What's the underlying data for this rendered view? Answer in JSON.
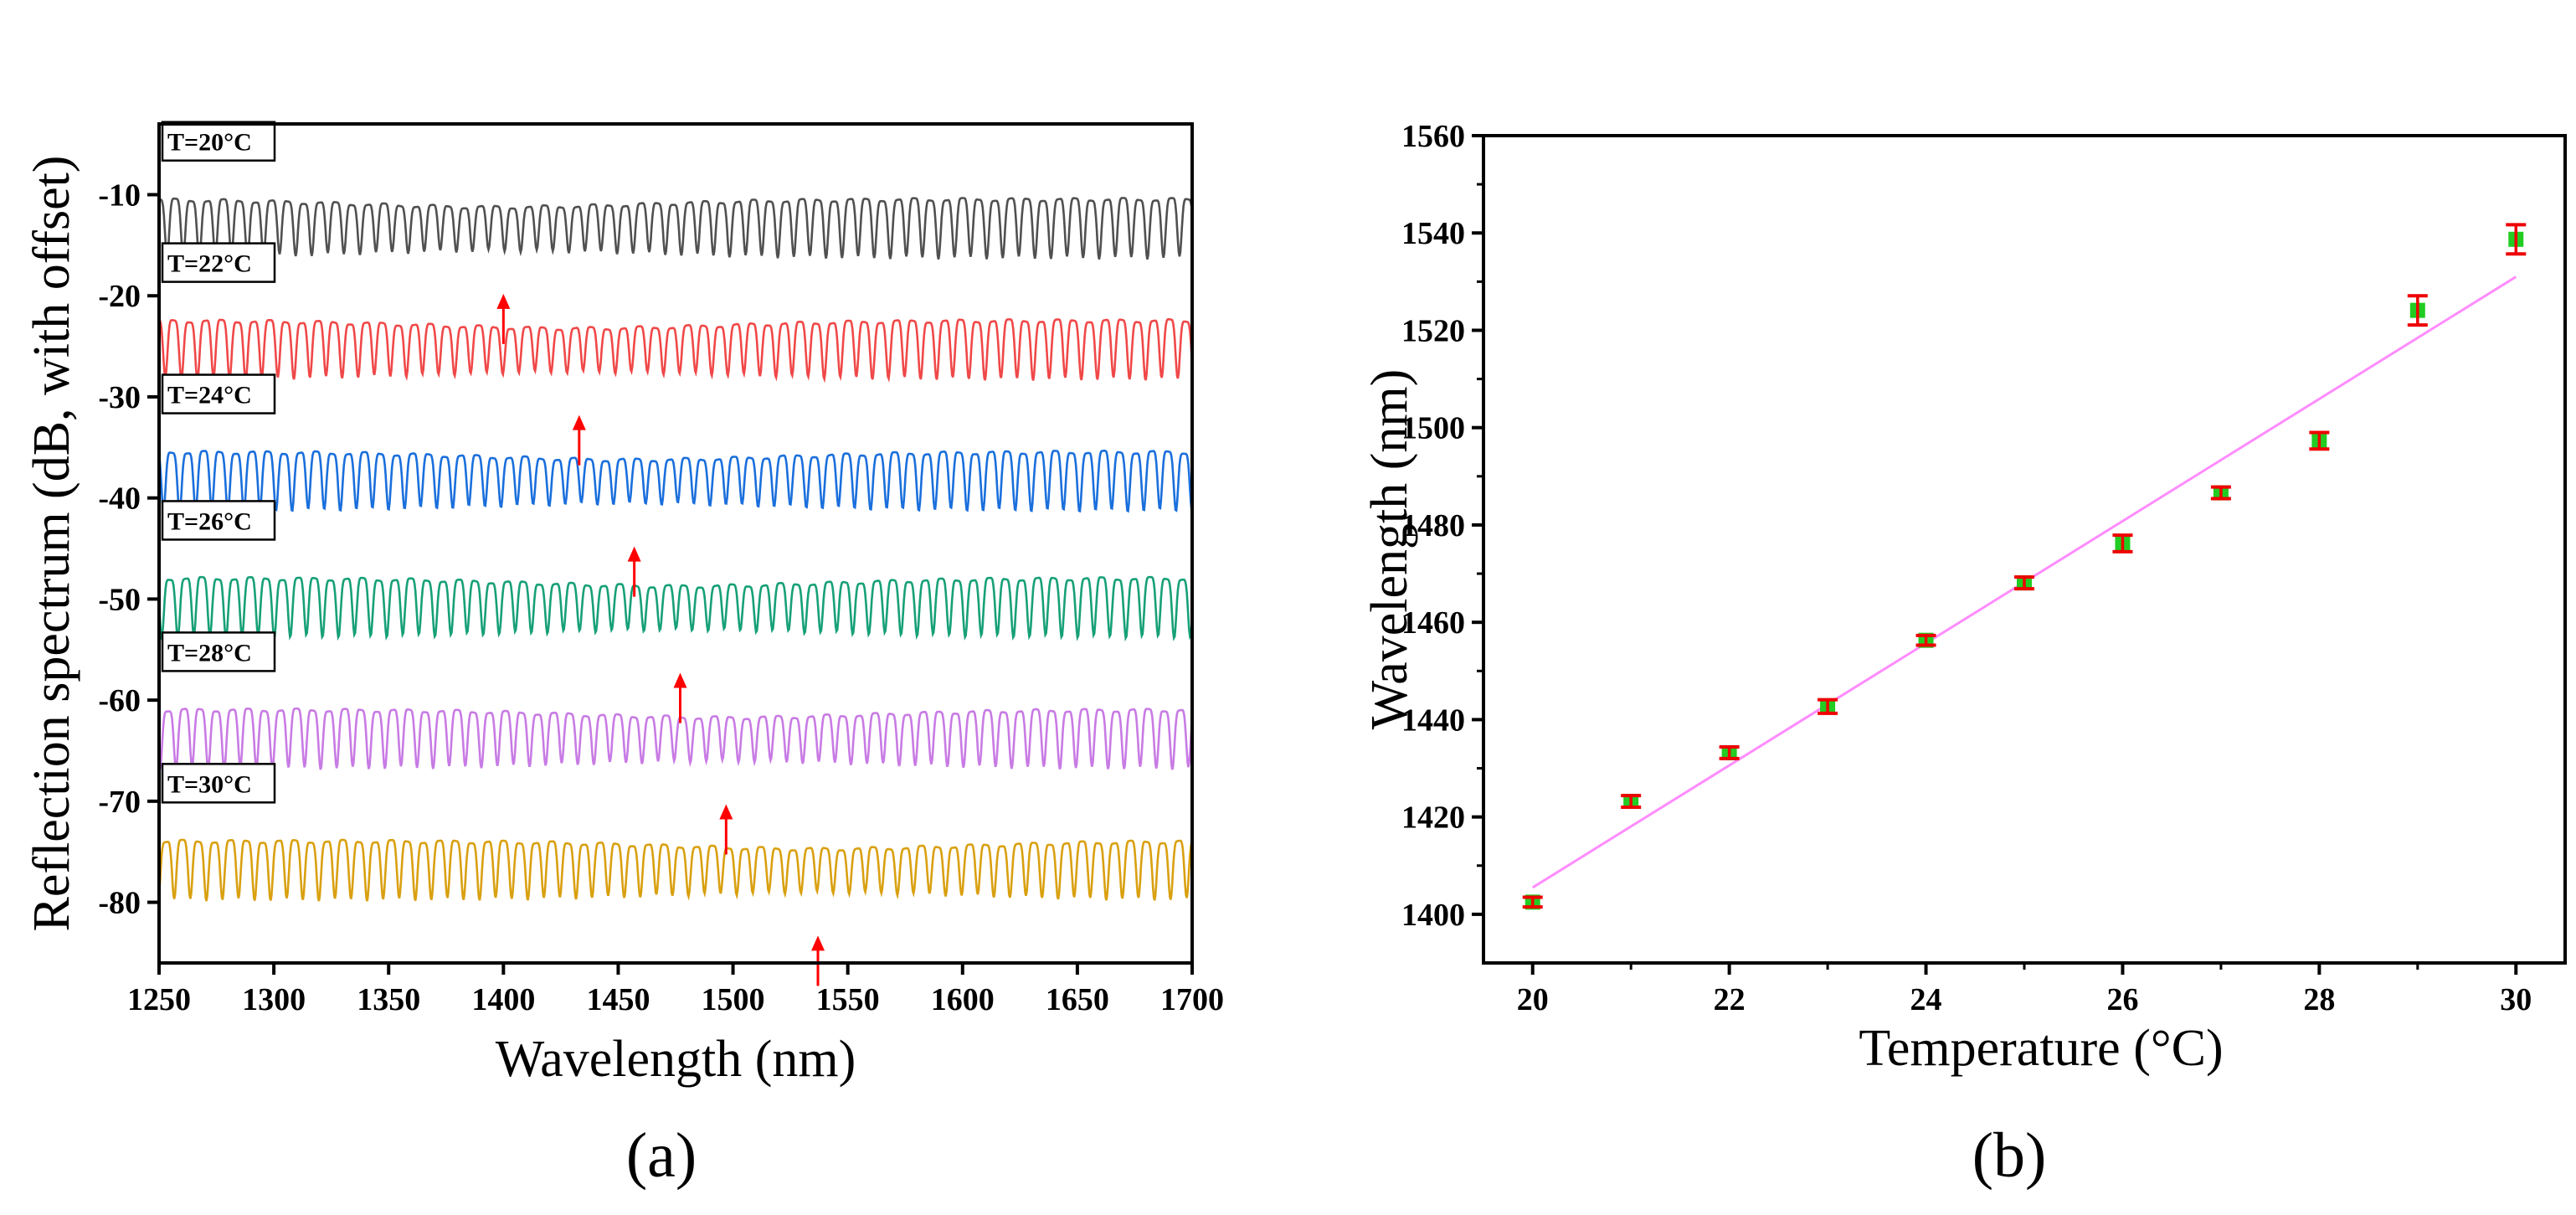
{
  "chart_data": [
    {
      "panel": "(a)",
      "type": "line",
      "xlabel": "Wavelength (nm)",
      "ylabel": "Reflection spectrum (dB, with offset)",
      "xlim": [
        1250,
        1700
      ],
      "ylim": [
        -86,
        -3
      ],
      "xticks": [
        1250,
        1300,
        1350,
        1400,
        1450,
        1500,
        1550,
        1600,
        1650,
        1700
      ],
      "yticks": [
        -10,
        -20,
        -30,
        -40,
        -50,
        -60,
        -70,
        -80
      ],
      "grid": false,
      "fringe_period_nm": 7,
      "series": [
        {
          "name": "T=20°C",
          "color": "#505050",
          "baseline_db": -13.5,
          "fringe_depth_db": 5.5,
          "dip_envelope_nm": 1400,
          "arrow_nm": 1400
        },
        {
          "name": "T=22°C",
          "color": "#f04848",
          "baseline_db": -25.5,
          "fringe_depth_db": 5.5,
          "dip_envelope_nm": 1433,
          "arrow_nm": 1433
        },
        {
          "name": "T=24°C",
          "color": "#1a6fdc",
          "baseline_db": -38.5,
          "fringe_depth_db": 5.5,
          "dip_envelope_nm": 1457,
          "arrow_nm": 1457
        },
        {
          "name": "T=26°C",
          "color": "#17a077",
          "baseline_db": -51,
          "fringe_depth_db": 5.5,
          "dip_envelope_nm": 1477,
          "arrow_nm": 1477
        },
        {
          "name": "T=28°C",
          "color": "#c87be4",
          "baseline_db": -64,
          "fringe_depth_db": 5.5,
          "dip_envelope_nm": 1497,
          "arrow_nm": 1497
        },
        {
          "name": "T=30°C",
          "color": "#d9a010",
          "baseline_db": -77,
          "fringe_depth_db": 5.5,
          "dip_envelope_nm": 1537,
          "arrow_nm": 1537
        }
      ],
      "arrow_color": "#ff0000"
    },
    {
      "panel": "(b)",
      "type": "scatter",
      "xlabel": "Temperature (°C)",
      "ylabel": "Wavelength (nm)",
      "xlim": [
        19.5,
        30.5
      ],
      "ylim": [
        1390,
        1560
      ],
      "xticks": [
        20,
        22,
        24,
        26,
        28,
        30
      ],
      "yticks": [
        1400,
        1420,
        1440,
        1460,
        1480,
        1500,
        1520,
        1540,
        1560
      ],
      "grid": false,
      "x": [
        20,
        21,
        22,
        23,
        24,
        25,
        26,
        27,
        28,
        29,
        30
      ],
      "y": [
        1402.5,
        1423.2,
        1433.2,
        1442.7,
        1456.3,
        1468.1,
        1476.2,
        1486.6,
        1497.3,
        1524.1,
        1538.7
      ],
      "error": [
        1.0,
        1.2,
        1.2,
        1.4,
        1.0,
        1.2,
        1.7,
        1.2,
        1.7,
        3.0,
        3.0
      ],
      "fit_line": {
        "x": [
          20,
          30
        ],
        "y": [
          1405.5,
          1531.0
        ],
        "color": "#ff8cff"
      },
      "marker_color": "#22cc22",
      "errorbar_color": "#ee0000"
    }
  ]
}
